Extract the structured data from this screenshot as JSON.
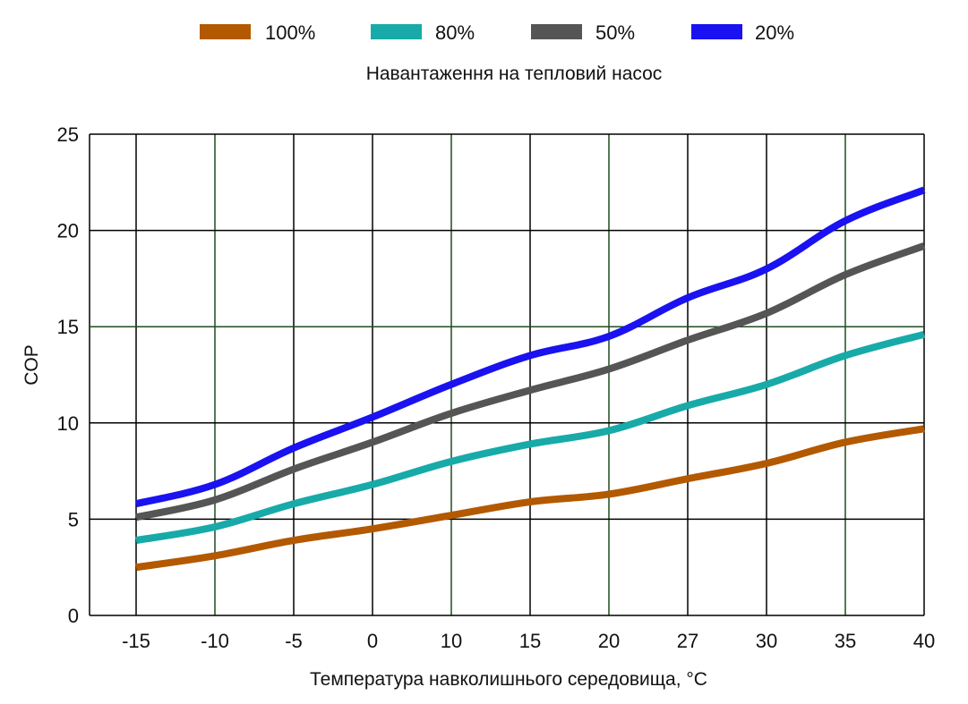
{
  "chart_data": {
    "type": "line",
    "title": "Навантаження на тепловий насос",
    "xlabel": "Температура навколишнього середовища, °C",
    "ylabel": "COP",
    "categories": [
      "-15",
      "-10",
      "-5",
      "0",
      "10",
      "15",
      "20",
      "27",
      "30",
      "35",
      "40"
    ],
    "yticks": [
      "0",
      "5",
      "10",
      "15",
      "20",
      "25"
    ],
    "ylim": [
      0,
      25
    ],
    "grid": true,
    "legend_position": "top",
    "series": [
      {
        "name": "100%",
        "color": "#b35900",
        "values": [
          2.5,
          3.1,
          3.9,
          4.5,
          5.2,
          5.9,
          6.3,
          7.1,
          7.9,
          9.0,
          9.7
        ]
      },
      {
        "name": "80%",
        "color": "#17aaa8",
        "values": [
          3.9,
          4.6,
          5.8,
          6.8,
          8.0,
          8.9,
          9.6,
          10.9,
          12.0,
          13.5,
          14.6
        ]
      },
      {
        "name": "50%",
        "color": "#555555",
        "values": [
          5.1,
          6.0,
          7.6,
          9.0,
          10.5,
          11.7,
          12.8,
          14.3,
          15.7,
          17.7,
          19.2
        ]
      },
      {
        "name": "20%",
        "color": "#1a12f0",
        "values": [
          5.8,
          6.8,
          8.7,
          10.3,
          12.0,
          13.5,
          14.5,
          16.5,
          18.0,
          20.5,
          22.1
        ]
      }
    ]
  }
}
